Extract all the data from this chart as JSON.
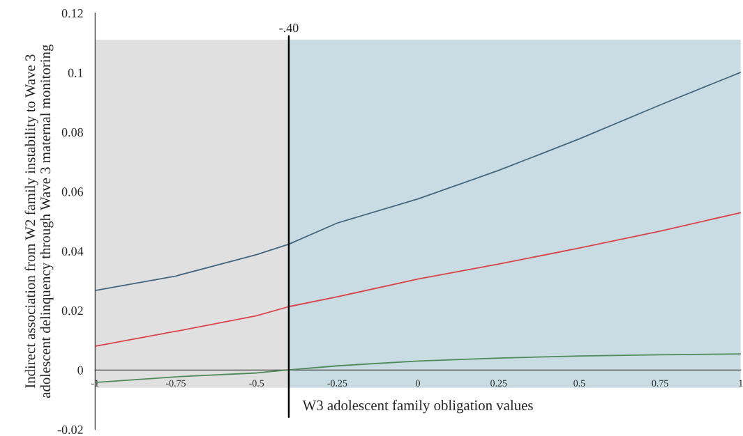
{
  "chart_data": {
    "type": "line",
    "xlabel": "W3 adolescent family obligation values",
    "ylabel": "Indirect association from W2 family instability to Wave 3\nadolescent delinquency through Wave 3 maternal monitoring",
    "x": [
      -1,
      -0.75,
      -0.5,
      -0.4,
      -0.25,
      0,
      0.25,
      0.5,
      0.75,
      1
    ],
    "series": [
      {
        "color": "#44677f",
        "values": [
          0.0267,
          0.0316,
          0.0388,
          0.0423,
          0.0494,
          0.0575,
          0.0671,
          0.0777,
          0.0891,
          0.1001
        ]
      },
      {
        "color": "#d9434a",
        "values": [
          0.008,
          0.013,
          0.0182,
          0.0213,
          0.0246,
          0.0306,
          0.0356,
          0.041,
          0.0467,
          0.0529
        ]
      },
      {
        "color": "#4f8a5b",
        "values": [
          -0.0042,
          -0.0023,
          -0.001,
          0,
          0.0014,
          0.003,
          0.004,
          0.0047,
          0.0051,
          0.0054
        ]
      }
    ],
    "xlim": [
      -1,
      1
    ],
    "ylim": [
      -0.02,
      0.12
    ],
    "xticks": [
      -1,
      -0.75,
      -0.5,
      -0.25,
      0,
      0.25,
      0.5,
      0.75,
      1
    ],
    "yticks": [
      -0.02,
      0,
      0.02,
      0.04,
      0.06,
      0.08,
      0.1,
      0.12
    ],
    "bands": [
      {
        "axis": "x",
        "from": -1,
        "to": -0.4,
        "color": "#e0e0e0"
      },
      {
        "axis": "x",
        "from": -0.4,
        "to": 1,
        "color": "#c9dbe3"
      }
    ],
    "ref_lines": [
      {
        "axis": "x",
        "value": -0.4,
        "label": "-.40",
        "color": "#000000"
      }
    ],
    "legend": false,
    "marker": "none",
    "line_style": "solid"
  }
}
